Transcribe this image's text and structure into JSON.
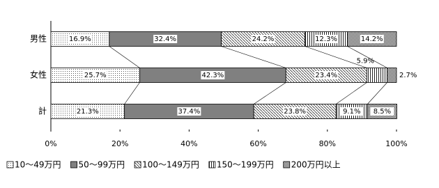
{
  "chart_data": {
    "type": "stacked_bar_horizontal",
    "categories": [
      "男性",
      "女性",
      "計"
    ],
    "series": [
      {
        "name": "10〜49万円",
        "color": "#ffffff",
        "pattern": "dots",
        "values": [
          16.9,
          25.7,
          21.3
        ],
        "value_labels": [
          "16.9%",
          "25.7%",
          "21.3%"
        ]
      },
      {
        "name": "50〜99万円",
        "color": "#808080",
        "pattern": "solid",
        "values": [
          32.4,
          42.3,
          37.4
        ],
        "value_labels": [
          "32.4%",
          "42.3%",
          "37.4%"
        ]
      },
      {
        "name": "100〜149万円",
        "color": "#ffffff",
        "pattern": "diagonal",
        "values": [
          24.2,
          23.4,
          23.8
        ],
        "value_labels": [
          "24.2%",
          "23.4%",
          "23.8%"
        ]
      },
      {
        "name": "150〜199万円",
        "color": "#ffffff",
        "pattern": "vertical",
        "values": [
          12.3,
          5.9,
          9.1
        ],
        "value_labels": [
          "12.3%",
          "5.9%",
          "9.1%"
        ]
      },
      {
        "name": "200万円以上",
        "color": "#d0d0d0",
        "pattern": "checker",
        "values": [
          14.2,
          2.7,
          8.5
        ],
        "value_labels": [
          "14.2%",
          "2.7%",
          "8.5%"
        ]
      }
    ],
    "xlim": [
      0,
      100
    ],
    "xticks": [
      {
        "value": 0,
        "label": "0%"
      },
      {
        "value": 20,
        "label": "20%"
      },
      {
        "value": 40,
        "label": "40%"
      },
      {
        "value": 60,
        "label": "60%"
      },
      {
        "value": 80,
        "label": "80%"
      },
      {
        "value": 100,
        "label": "100%"
      }
    ],
    "legend": "bottom"
  }
}
